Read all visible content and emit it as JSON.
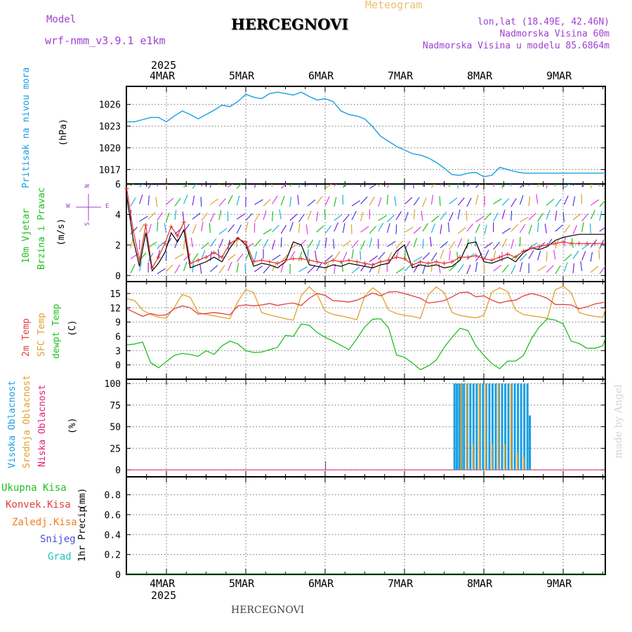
{
  "header": {
    "meteogram_label": "Meteogram",
    "model_label": "Model",
    "model_name": "wrf-nmm_v3.9.1 e1km",
    "station_title": "HERCEGNOVI",
    "lonlat": "lon,lat (18.49E, 42.46N)",
    "elevation": "Nadmorska Visina 60m",
    "model_elevation": "Nadmorska Visina u modelu 85.6864m",
    "footer_station": "HERCEGNOVI",
    "watermark": "made by Angel"
  },
  "time_axis": {
    "top_year": "2025",
    "bottom_year": "2025",
    "days": [
      "4MAR",
      "5MAR",
      "6MAR",
      "7MAR",
      "8MAR",
      "9MAR"
    ]
  },
  "colors": {
    "pressure": "#1a9fe0",
    "wind_speed": "#000000",
    "wind_gust": "#e03030",
    "temp2m": "#e04040",
    "sfc_temp": "#e0a030",
    "dewpt": "#20c020",
    "cloud_high": "#1a9fe0",
    "cloud_mid": "#e0a030",
    "cloud_low": "#e0207a",
    "precip_total": "#20c020",
    "precip_conv": "#e04040",
    "precip_frozen": "#f07f20",
    "snow": "#5050e0",
    "graupel": "#20c0c0",
    "axis_label_purple": "#a040d0",
    "grid": "#777777"
  },
  "chart_data": [
    {
      "type": "line",
      "ylabel_lines": [
        "Pritisak na nivou mora"
      ],
      "unit": "(hPa)",
      "ylim": [
        1015,
        1028.5
      ],
      "yticks": [
        1017,
        1020,
        1023,
        1026
      ],
      "grid": true,
      "x_days": [
        0,
        0.1,
        0.2,
        0.3,
        0.4,
        0.5,
        0.6,
        0.7,
        0.8,
        0.9,
        1.0,
        1.1,
        1.2,
        1.3,
        1.4,
        1.5,
        1.6,
        1.7,
        1.8,
        1.9,
        2.0,
        2.1,
        2.2,
        2.3,
        2.4,
        2.5,
        2.6,
        2.7,
        2.8,
        2.9,
        3.0,
        3.1,
        3.2,
        3.3,
        3.4,
        3.5,
        3.6,
        3.7,
        3.8,
        3.9,
        4.0,
        4.1,
        4.2,
        4.3,
        4.4,
        4.5,
        4.6,
        4.7,
        4.8,
        4.9,
        5.0,
        5.1,
        5.2,
        5.3,
        5.4,
        5.5,
        5.6,
        5.7,
        5.8,
        5.9,
        6.0,
        6.1
      ],
      "series": [
        {
          "values": [
            1023.6,
            1023.6,
            1023.9,
            1024.2,
            1024.2,
            1023.6,
            1024.4,
            1025.1,
            1024.6,
            1024.0,
            1024.6,
            1025.2,
            1025.9,
            1025.7,
            1026.4,
            1027.4,
            1027.0,
            1026.8,
            1027.5,
            1027.7,
            1027.5,
            1027.3,
            1027.7,
            1027.1,
            1026.6,
            1026.8,
            1026.4,
            1025.1,
            1024.6,
            1024.4,
            1024.0,
            1022.9,
            1021.6,
            1020.9,
            1020.2,
            1019.7,
            1019.2,
            1019.0,
            1018.6,
            1018.0,
            1017.2,
            1016.3,
            1016.2,
            1016.5,
            1016.6,
            1016.0,
            1016.2,
            1017.3,
            1017.0,
            1016.7,
            1016.5,
            1016.5,
            1016.5,
            1016.5,
            1016.5,
            1016.5,
            1016.5,
            1016.5,
            1016.5,
            1016.5,
            1016.5,
            1016.5
          ]
        }
      ]
    },
    {
      "type": "line",
      "ylabel_lines": [
        "10m Vjetar",
        "Brzina i Pravac"
      ],
      "unit": "(m/s)",
      "compass": [
        "N",
        "E",
        "S",
        "W"
      ],
      "ylim": [
        -0.4,
        6
      ],
      "yticks": [
        0,
        2,
        4,
        6
      ],
      "grid": true,
      "x_days": [
        0,
        0.08,
        0.16,
        0.24,
        0.32,
        0.4,
        0.48,
        0.56,
        0.64,
        0.72,
        0.8,
        0.9,
        1.0,
        1.1,
        1.2,
        1.3,
        1.4,
        1.5,
        1.6,
        1.7,
        1.8,
        1.9,
        2.0,
        2.1,
        2.2,
        2.3,
        2.4,
        2.5,
        2.6,
        2.7,
        2.8,
        2.9,
        3.0,
        3.1,
        3.2,
        3.3,
        3.4,
        3.5,
        3.6,
        3.7,
        3.8,
        3.9,
        4.0,
        4.1,
        4.2,
        4.3,
        4.4,
        4.5,
        4.6,
        4.7,
        4.8,
        4.9,
        5.0,
        5.1,
        5.2,
        5.3,
        5.4,
        5.5,
        5.6,
        5.7,
        5.8,
        5.9,
        6.0,
        6.1
      ],
      "series": [
        {
          "values": [
            5.2,
            2.4,
            0.6,
            2.8,
            0.3,
            0.8,
            1.5,
            2.8,
            2.2,
            3.0,
            0.5,
            0.7,
            0.9,
            1.2,
            0.9,
            1.8,
            2.5,
            2.0,
            0.6,
            0.8,
            0.7,
            0.5,
            0.9,
            2.2,
            2.0,
            0.7,
            0.6,
            0.5,
            0.7,
            0.6,
            0.8,
            0.7,
            0.6,
            0.5,
            0.7,
            0.8,
            1.6,
            2.0,
            0.5,
            0.7,
            0.6,
            0.7,
            0.5,
            0.6,
            1.0,
            2.1,
            2.2,
            0.9,
            0.8,
            1.0,
            1.2,
            0.9,
            1.5,
            1.8,
            1.7,
            1.9,
            2.3,
            2.5,
            2.6,
            2.7,
            2.7,
            2.7,
            2.7,
            2.7
          ]
        },
        {
          "values": [
            5.7,
            3.0,
            1.0,
            3.3,
            0.5,
            1.2,
            2.1,
            3.2,
            2.6,
            3.5,
            0.8,
            1.0,
            1.2,
            1.5,
            1.2,
            2.1,
            2.4,
            2.2,
            0.9,
            1.0,
            0.9,
            0.8,
            1.0,
            1.1,
            1.1,
            1.0,
            0.9,
            0.8,
            1.0,
            0.9,
            1.0,
            0.9,
            0.8,
            0.7,
            0.9,
            1.0,
            1.2,
            1.1,
            0.7,
            0.9,
            0.8,
            0.9,
            0.8,
            0.9,
            1.2,
            1.2,
            1.3,
            1.1,
            1.0,
            1.2,
            1.4,
            1.2,
            1.6,
            1.8,
            1.9,
            2.0,
            2.1,
            2.2,
            2.1,
            2.1,
            2.1,
            2.1,
            2.1,
            2.1
          ]
        }
      ]
    },
    {
      "type": "line",
      "ylabel_lines": [
        "2m Temp",
        "SFC Temp",
        "dewpt Temp"
      ],
      "unit": "(C)",
      "ylim": [
        -3,
        17.5
      ],
      "yticks": [
        0,
        3,
        6,
        9,
        12,
        15
      ],
      "grid": true,
      "x_days": [
        0,
        0.1,
        0.2,
        0.3,
        0.4,
        0.5,
        0.6,
        0.7,
        0.8,
        0.9,
        1.0,
        1.1,
        1.2,
        1.3,
        1.4,
        1.5,
        1.6,
        1.7,
        1.8,
        1.9,
        2.0,
        2.1,
        2.2,
        2.3,
        2.4,
        2.5,
        2.6,
        2.7,
        2.8,
        2.9,
        3.0,
        3.1,
        3.2,
        3.3,
        3.4,
        3.5,
        3.6,
        3.7,
        3.8,
        3.9,
        4.0,
        4.1,
        4.2,
        4.3,
        4.4,
        4.5,
        4.6,
        4.7,
        4.8,
        4.9,
        5.0,
        5.1,
        5.2,
        5.3,
        5.4,
        5.5,
        5.6,
        5.7,
        5.8,
        5.9,
        6.0,
        6.1
      ],
      "series": [
        {
          "values": [
            11.8,
            11.0,
            10.2,
            10.8,
            10.4,
            10.5,
            11.8,
            12.4,
            12.0,
            10.7,
            10.8,
            11.0,
            10.8,
            10.5,
            12.4,
            12.6,
            12.4,
            12.6,
            12.9,
            12.5,
            12.8,
            13.0,
            12.5,
            14.0,
            15.0,
            14.6,
            13.5,
            13.4,
            13.2,
            13.6,
            14.3,
            15.1,
            14.5,
            15.3,
            15.4,
            15.0,
            14.5,
            14.0,
            13.0,
            13.2,
            13.5,
            14.3,
            15.2,
            15.3,
            14.3,
            14.5,
            13.6,
            13.0,
            13.4,
            13.6,
            14.5,
            15.0,
            14.6,
            14.0,
            12.7,
            12.7,
            12.6,
            11.8,
            12.2,
            12.8,
            13.1,
            13.3
          ]
        },
        {
          "values": [
            13.9,
            13.5,
            11.5,
            10.6,
            10.0,
            9.8,
            12.1,
            14.8,
            14.2,
            11.0,
            10.6,
            10.3,
            10.0,
            9.7,
            13.3,
            15.8,
            15.2,
            11.0,
            10.5,
            10.1,
            9.7,
            9.4,
            14.6,
            16.4,
            14.8,
            11.3,
            10.6,
            10.3,
            9.9,
            9.5,
            14.5,
            16.2,
            15.0,
            11.5,
            10.8,
            10.4,
            10.2,
            9.8,
            14.7,
            16.4,
            15.2,
            11.0,
            10.4,
            10.1,
            9.9,
            10.4,
            15.3,
            16.2,
            15.4,
            11.5,
            10.6,
            10.3,
            10.1,
            9.8,
            15.8,
            16.5,
            15.2,
            11.0,
            10.5,
            10.2,
            10.0,
            15.8
          ]
        },
        {
          "values": [
            4.2,
            4.4,
            4.8,
            0.5,
            -0.6,
            0.7,
            2.0,
            2.4,
            2.2,
            1.8,
            3.0,
            2.2,
            4.0,
            5.0,
            4.4,
            3.0,
            2.6,
            2.7,
            3.2,
            3.7,
            6.2,
            6.0,
            8.6,
            8.3,
            6.8,
            5.8,
            5.0,
            4.1,
            3.2,
            5.5,
            8.0,
            9.6,
            9.7,
            7.8,
            2.1,
            1.6,
            0.4,
            -1.0,
            -0.2,
            1.0,
            3.7,
            5.8,
            7.7,
            7.2,
            4.0,
            2.0,
            0.3,
            -0.8,
            0.8,
            0.8,
            2.0,
            5.5,
            8.0,
            9.7,
            9.4,
            8.6,
            5.0,
            4.5,
            3.5,
            3.5,
            4.0,
            9.6
          ]
        }
      ]
    },
    {
      "type": "bar",
      "ylabel_lines": [
        "Visoka Oblacnost",
        "Srednja Oblacnost",
        "Niska Oblacnost"
      ],
      "unit": "(%)",
      "ylim": [
        -8,
        105
      ],
      "yticks": [
        0,
        25,
        50,
        75,
        100
      ],
      "grid": true,
      "bars_high": {
        "x_days": [
          4.13,
          4.16,
          4.19,
          4.22,
          4.25,
          4.29,
          4.33,
          4.37,
          4.41,
          4.45,
          4.49,
          4.53,
          4.57,
          4.61,
          4.65,
          4.69,
          4.73,
          4.77,
          4.81,
          4.85,
          4.89,
          4.93,
          4.97,
          5.01,
          5.05,
          5.08
        ],
        "values": [
          100,
          100,
          100,
          100,
          100,
          100,
          100,
          100,
          100,
          100,
          100,
          100,
          100,
          100,
          100,
          100,
          100,
          100,
          100,
          100,
          100,
          100,
          100,
          100,
          100,
          63
        ]
      },
      "bars_mid": {
        "x_days": [
          4.2,
          4.27,
          4.35,
          4.43,
          4.51,
          4.59,
          4.67,
          4.75,
          4.83,
          4.91,
          4.99
        ],
        "values": [
          100,
          100,
          30,
          100,
          100,
          30,
          100,
          30,
          100,
          20,
          15
        ]
      },
      "bars_low": {
        "x_days": [
          2.5
        ],
        "values": [
          10
        ]
      }
    },
    {
      "type": "line",
      "ylabel_lines": [
        "1hr Precip"
      ],
      "unit": "(mm)",
      "legend": [
        "Ukupna Kisa",
        "Konvek.Kisa",
        "Zaledj.Kisa",
        "Snijeg",
        "Grad"
      ],
      "ylim": [
        0,
        0.98
      ],
      "yticks": [
        0,
        0.2,
        0.4,
        0.6,
        0.8
      ],
      "grid": true,
      "series": [
        {
          "values": [
            0,
            0,
            0,
            0,
            0,
            0,
            0
          ]
        }
      ]
    }
  ]
}
